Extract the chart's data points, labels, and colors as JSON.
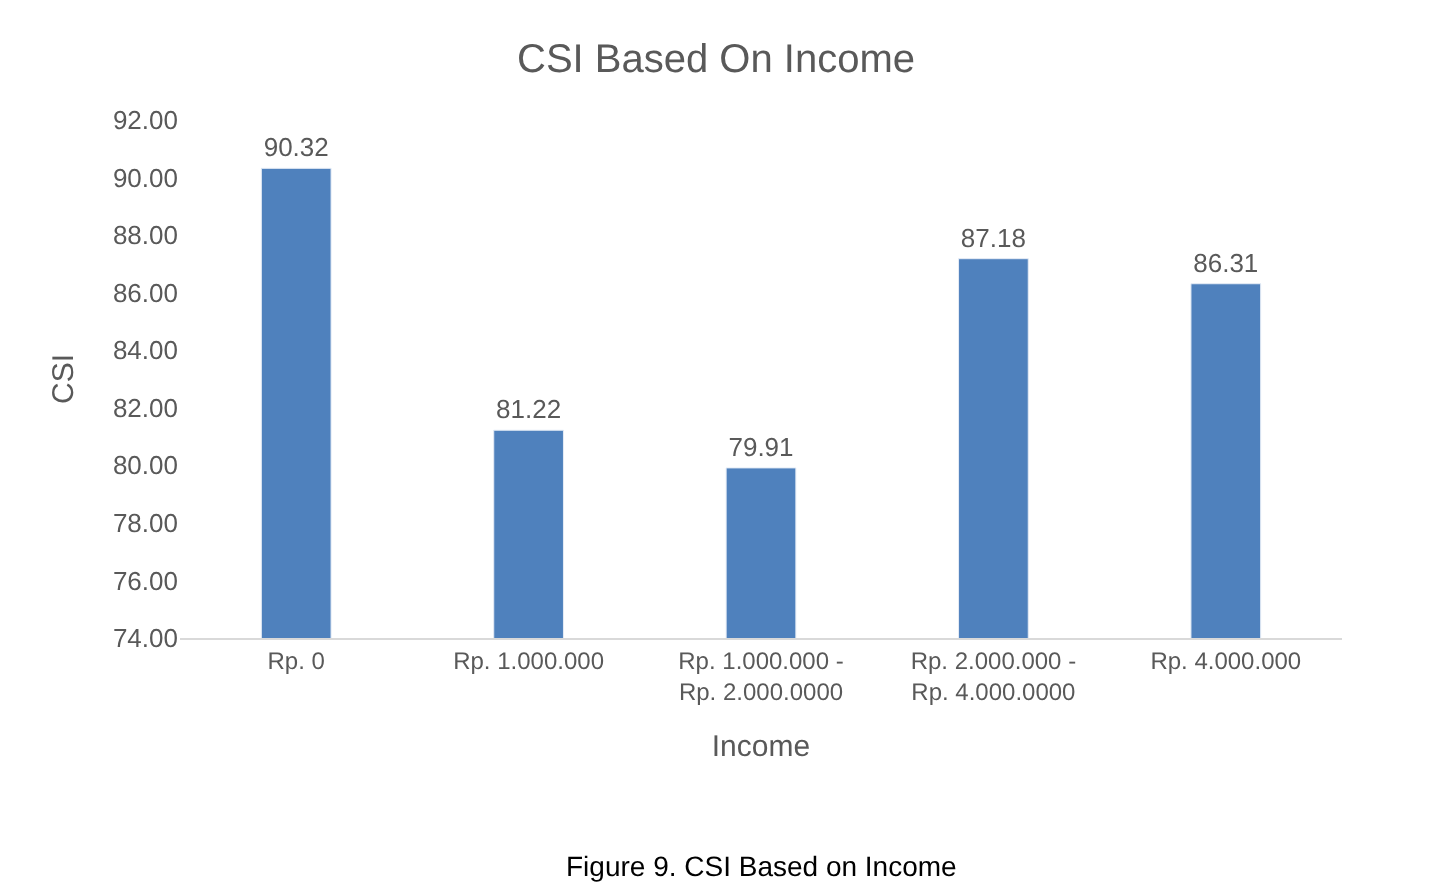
{
  "chart_data": {
    "type": "bar",
    "title": "CSI Based On Income",
    "xlabel": "Income",
    "ylabel": "CSI",
    "categories": [
      "Rp. 0",
      "Rp. 1.000.000",
      "Rp. 1.000.000 -\nRp. 2.000.0000",
      "Rp. 2.000.000 -\nRp. 4.000.0000",
      "Rp. 4.000.000"
    ],
    "values": [
      90.32,
      81.22,
      79.91,
      87.18,
      86.31
    ],
    "color": "#4f81bd",
    "ylim": [
      74,
      92
    ],
    "yticks": [
      {
        "value": 74,
        "label": "74.00"
      },
      {
        "value": 76,
        "label": "76.00"
      },
      {
        "value": 78,
        "label": "78.00"
      },
      {
        "value": 80,
        "label": "80.00"
      },
      {
        "value": 82,
        "label": "82.00"
      },
      {
        "value": 84,
        "label": "84.00"
      },
      {
        "value": 86,
        "label": "86.00"
      },
      {
        "value": 88,
        "label": "88.00"
      },
      {
        "value": 90,
        "label": "90.00"
      },
      {
        "value": 92,
        "label": "92.00"
      }
    ],
    "data_labels": true,
    "annotations": [
      "Figure 9. CSI Based on Income"
    ]
  }
}
